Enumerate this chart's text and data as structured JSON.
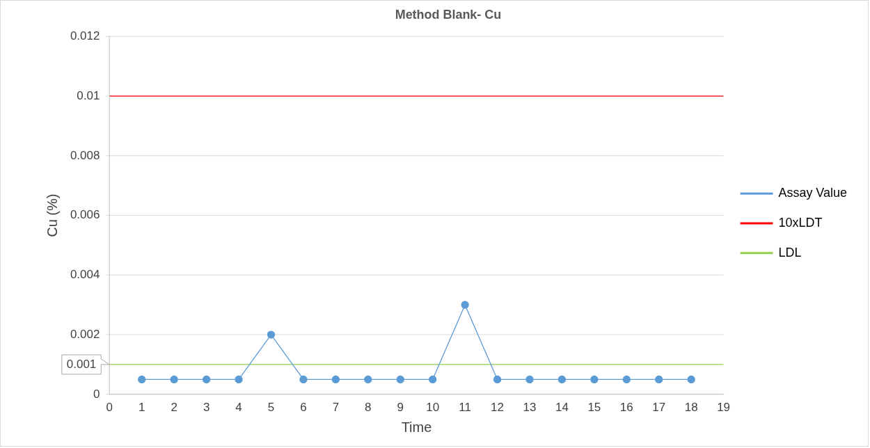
{
  "chart_data": {
    "type": "line",
    "title": "Method Blank- Cu",
    "xlabel": "Time",
    "ylabel": "Cu (%)",
    "xlim": [
      0,
      19
    ],
    "xticks": [
      0,
      1,
      2,
      3,
      4,
      5,
      6,
      7,
      8,
      9,
      10,
      11,
      12,
      13,
      14,
      15,
      16,
      17,
      18,
      19
    ],
    "ylim": [
      0,
      0.012
    ],
    "yticks": [
      0,
      0.002,
      0.004,
      0.006,
      0.008,
      0.01,
      0.012
    ],
    "grid": "y",
    "legend": "right",
    "marker": "circle",
    "line_style": "solid",
    "annotations": [
      {
        "text": "0.001",
        "x": 0,
        "y": 0.001
      }
    ],
    "series": [
      {
        "name": "Assay Value",
        "color": "#5b9bd5",
        "x": [
          1,
          2,
          3,
          4,
          5,
          6,
          7,
          8,
          9,
          10,
          11,
          12,
          13,
          14,
          15,
          16,
          17,
          18
        ],
        "values": [
          0.0005,
          0.0005,
          0.0005,
          0.0005,
          0.002,
          0.0005,
          0.0005,
          0.0005,
          0.0005,
          0.0005,
          0.003,
          0.0005,
          0.0005,
          0.0005,
          0.0005,
          0.0005,
          0.0005,
          0.0005
        ]
      },
      {
        "name": "10xLDT",
        "color": "#ff0000",
        "marker": "none",
        "x": [
          0,
          19
        ],
        "values": [
          0.01,
          0.01
        ]
      },
      {
        "name": "LDL",
        "color": "#92d050",
        "marker": "none",
        "x": [
          0,
          19
        ],
        "values": [
          0.001,
          0.001
        ]
      }
    ]
  }
}
